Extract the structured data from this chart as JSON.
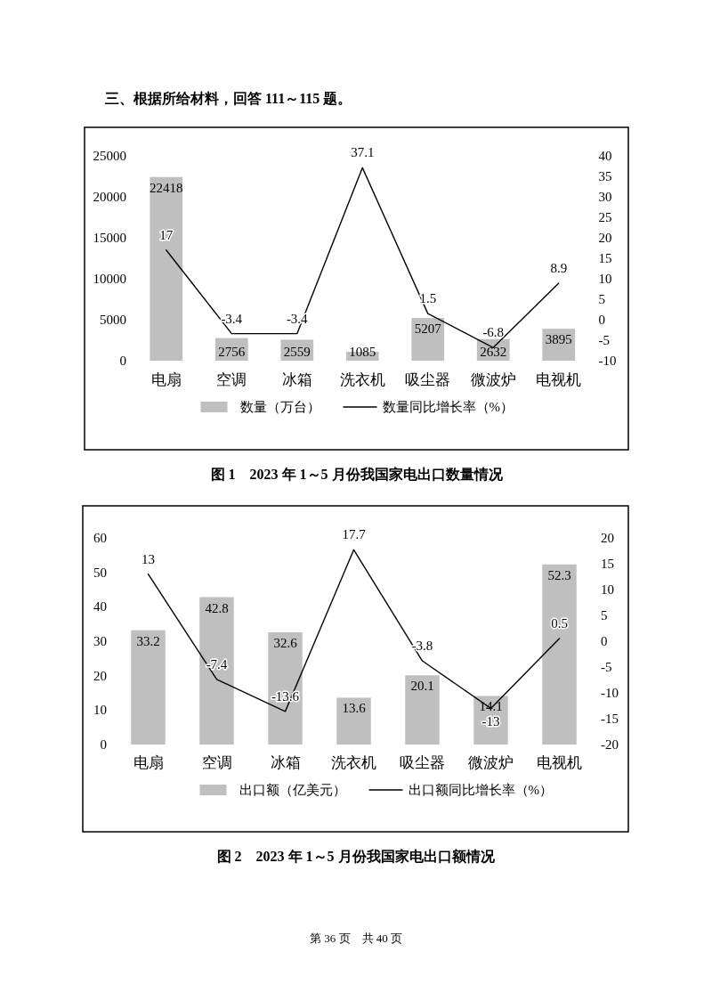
{
  "chart_data": [
    {
      "type": "bar",
      "title": "图 1　2023 年 1～5 月份我国家电出口数量情况",
      "annotations": [
        "三、根据所给材料，回答 111～115 题。"
      ],
      "categories": [
        "电扇",
        "空调",
        "冰箱",
        "洗衣机",
        "吸尘器",
        "微波炉",
        "电视机"
      ],
      "series": [
        {
          "name": "数量（万台）",
          "type": "bar",
          "color": "#bfbfbf",
          "values": [
            22418,
            2756,
            2559,
            1085,
            5207,
            2632,
            3895
          ]
        },
        {
          "name": "数量同比增长率（%）",
          "type": "line",
          "axis": "y2",
          "color": "#000000",
          "values": [
            17,
            -3.4,
            -3.4,
            37.1,
            1.5,
            -6.8,
            8.9
          ]
        }
      ],
      "ylim": [
        0,
        25000
      ],
      "yticks": [
        0,
        5000,
        10000,
        15000,
        20000,
        25000
      ],
      "y2lim": [
        -10,
        40
      ],
      "y2ticks": [
        -10,
        -5,
        0,
        5,
        10,
        15,
        20,
        25,
        30,
        35,
        40
      ],
      "data_labels": true,
      "legend": "bottom"
    },
    {
      "type": "bar",
      "title": "图 2　2023 年 1～5 月份我国家电出口额情况",
      "annotations": [
        "第 36 页　共 40 页"
      ],
      "categories": [
        "电扇",
        "空调",
        "冰箱",
        "洗衣机",
        "吸尘器",
        "微波炉",
        "电视机"
      ],
      "series": [
        {
          "name": "出口额（亿美元）",
          "type": "bar",
          "color": "#bfbfbf",
          "values": [
            33.2,
            42.8,
            32.6,
            13.6,
            20.1,
            14.1,
            52.3
          ]
        },
        {
          "name": "出口额同比增长率（%）",
          "type": "line",
          "axis": "y2",
          "color": "#000000",
          "values": [
            13,
            -7.4,
            -13.6,
            17.7,
            -3.8,
            -13,
            0.5
          ]
        }
      ],
      "ylim": [
        0,
        60
      ],
      "yticks": [
        0,
        10,
        20,
        30,
        40,
        50,
        60
      ],
      "y2lim": [
        -20,
        20
      ],
      "y2ticks": [
        -20,
        -15,
        -10,
        -5,
        0,
        5,
        10,
        15,
        20
      ],
      "data_labels": true,
      "legend": "bottom"
    }
  ]
}
